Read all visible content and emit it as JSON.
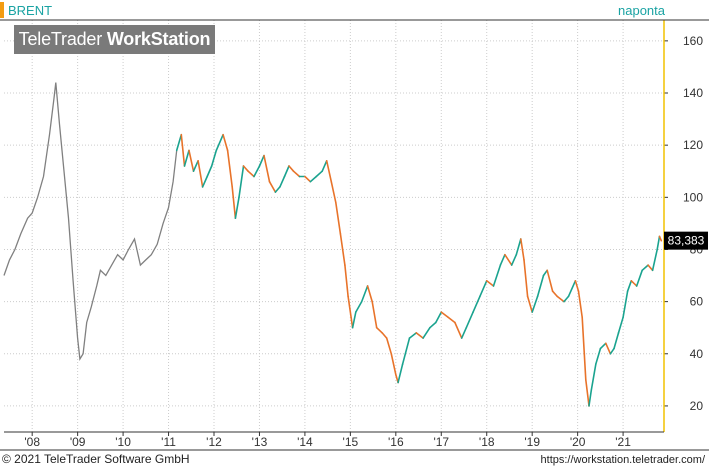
{
  "header": {
    "symbol": "BRENT",
    "period": "naponta",
    "watermark_light": "TeleTrader ",
    "watermark_bold": "WorkStation"
  },
  "footer": {
    "copyright": "© 2021 TeleTrader Software GmbH",
    "url": "https://workstation.teletrader.com/"
  },
  "colors": {
    "up": "#1aa38f",
    "down": "#e8732a",
    "history": "#808080",
    "grid": "#cccccc",
    "axis_accent": "#f2c200",
    "price_box": "#000000"
  },
  "chart_data": {
    "type": "line",
    "title": "BRENT",
    "ylim": [
      10,
      168
    ],
    "y_ticks": [
      20,
      40,
      60,
      80,
      100,
      120,
      140,
      160
    ],
    "x_ticks": [
      {
        "label": "'08",
        "t": 2008.0
      },
      {
        "label": "'09",
        "t": 2009.0
      },
      {
        "label": "'10",
        "t": 2010.0
      },
      {
        "label": "'11",
        "t": 2011.0
      },
      {
        "label": "'12",
        "t": 2012.0
      },
      {
        "label": "'13",
        "t": 2013.0
      },
      {
        "label": "'14",
        "t": 2014.0
      },
      {
        "label": "'15",
        "t": 2015.0
      },
      {
        "label": "'16",
        "t": 2016.0
      },
      {
        "label": "'17",
        "t": 2017.0
      },
      {
        "label": "'18",
        "t": 2018.0
      },
      {
        "label": "'19",
        "t": 2019.0
      },
      {
        "label": "'20",
        "t": 2020.0
      },
      {
        "label": "'21",
        "t": 2021.0
      }
    ],
    "last_price_label": "83,383",
    "last_price": 83.38,
    "history_series": {
      "name": "history",
      "points": [
        [
          2007.38,
          70
        ],
        [
          2007.5,
          76
        ],
        [
          2007.62,
          80
        ],
        [
          2007.75,
          86
        ],
        [
          2007.9,
          92
        ],
        [
          2008.0,
          94
        ],
        [
          2008.12,
          100
        ],
        [
          2008.25,
          108
        ],
        [
          2008.38,
          124
        ],
        [
          2008.48,
          138
        ],
        [
          2008.52,
          144
        ],
        [
          2008.6,
          128
        ],
        [
          2008.7,
          110
        ],
        [
          2008.8,
          92
        ],
        [
          2008.9,
          68
        ],
        [
          2009.0,
          46
        ],
        [
          2009.05,
          38
        ],
        [
          2009.12,
          40
        ],
        [
          2009.2,
          52
        ],
        [
          2009.3,
          58
        ],
        [
          2009.42,
          66
        ],
        [
          2009.5,
          72
        ],
        [
          2009.62,
          70
        ],
        [
          2009.75,
          74
        ],
        [
          2009.88,
          78
        ],
        [
          2010.0,
          76
        ],
        [
          2010.12,
          80
        ],
        [
          2010.25,
          84
        ],
        [
          2010.38,
          74
        ],
        [
          2010.5,
          76
        ],
        [
          2010.62,
          78
        ],
        [
          2010.75,
          82
        ],
        [
          2010.88,
          90
        ],
        [
          2011.0,
          96
        ],
        [
          2011.1,
          106
        ],
        [
          2011.18,
          118
        ]
      ]
    },
    "series": [
      {
        "name": "BRENT",
        "points": [
          [
            2011.18,
            118
          ],
          [
            2011.28,
            124
          ],
          [
            2011.35,
            112
          ],
          [
            2011.45,
            118
          ],
          [
            2011.55,
            110
          ],
          [
            2011.65,
            114
          ],
          [
            2011.75,
            104
          ],
          [
            2011.85,
            108
          ],
          [
            2011.95,
            112
          ],
          [
            2012.05,
            118
          ],
          [
            2012.2,
            124
          ],
          [
            2012.3,
            118
          ],
          [
            2012.4,
            104
          ],
          [
            2012.47,
            92
          ],
          [
            2012.55,
            100
          ],
          [
            2012.65,
            112
          ],
          [
            2012.75,
            110
          ],
          [
            2012.88,
            108
          ],
          [
            2013.0,
            112
          ],
          [
            2013.1,
            116
          ],
          [
            2013.22,
            106
          ],
          [
            2013.35,
            102
          ],
          [
            2013.45,
            104
          ],
          [
            2013.55,
            108
          ],
          [
            2013.65,
            112
          ],
          [
            2013.75,
            110
          ],
          [
            2013.88,
            108
          ],
          [
            2014.0,
            108
          ],
          [
            2014.12,
            106
          ],
          [
            2014.25,
            108
          ],
          [
            2014.38,
            110
          ],
          [
            2014.48,
            114
          ],
          [
            2014.58,
            106
          ],
          [
            2014.68,
            98
          ],
          [
            2014.78,
            86
          ],
          [
            2014.88,
            74
          ],
          [
            2014.95,
            62
          ],
          [
            2015.05,
            50
          ],
          [
            2015.12,
            56
          ],
          [
            2015.25,
            60
          ],
          [
            2015.38,
            66
          ],
          [
            2015.48,
            60
          ],
          [
            2015.58,
            50
          ],
          [
            2015.7,
            48
          ],
          [
            2015.8,
            46
          ],
          [
            2015.9,
            40
          ],
          [
            2016.0,
            32
          ],
          [
            2016.05,
            29
          ],
          [
            2016.15,
            36
          ],
          [
            2016.3,
            46
          ],
          [
            2016.45,
            48
          ],
          [
            2016.6,
            46
          ],
          [
            2016.75,
            50
          ],
          [
            2016.88,
            52
          ],
          [
            2017.0,
            56
          ],
          [
            2017.15,
            54
          ],
          [
            2017.3,
            52
          ],
          [
            2017.45,
            46
          ],
          [
            2017.55,
            50
          ],
          [
            2017.7,
            56
          ],
          [
            2017.85,
            62
          ],
          [
            2018.0,
            68
          ],
          [
            2018.15,
            66
          ],
          [
            2018.3,
            74
          ],
          [
            2018.4,
            78
          ],
          [
            2018.55,
            74
          ],
          [
            2018.65,
            78
          ],
          [
            2018.75,
            84
          ],
          [
            2018.82,
            76
          ],
          [
            2018.9,
            62
          ],
          [
            2019.0,
            56
          ],
          [
            2019.12,
            62
          ],
          [
            2019.25,
            70
          ],
          [
            2019.33,
            72
          ],
          [
            2019.45,
            64
          ],
          [
            2019.55,
            62
          ],
          [
            2019.7,
            60
          ],
          [
            2019.8,
            62
          ],
          [
            2019.95,
            68
          ],
          [
            2020.02,
            64
          ],
          [
            2020.1,
            54
          ],
          [
            2020.18,
            30
          ],
          [
            2020.25,
            20
          ],
          [
            2020.3,
            26
          ],
          [
            2020.4,
            36
          ],
          [
            2020.5,
            42
          ],
          [
            2020.62,
            44
          ],
          [
            2020.72,
            40
          ],
          [
            2020.8,
            42
          ],
          [
            2020.9,
            48
          ],
          [
            2021.0,
            54
          ],
          [
            2021.1,
            64
          ],
          [
            2021.18,
            68
          ],
          [
            2021.3,
            66
          ],
          [
            2021.42,
            72
          ],
          [
            2021.55,
            74
          ],
          [
            2021.65,
            72
          ],
          [
            2021.75,
            80
          ],
          [
            2021.8,
            85
          ],
          [
            2021.84,
            83.38
          ]
        ]
      }
    ]
  }
}
